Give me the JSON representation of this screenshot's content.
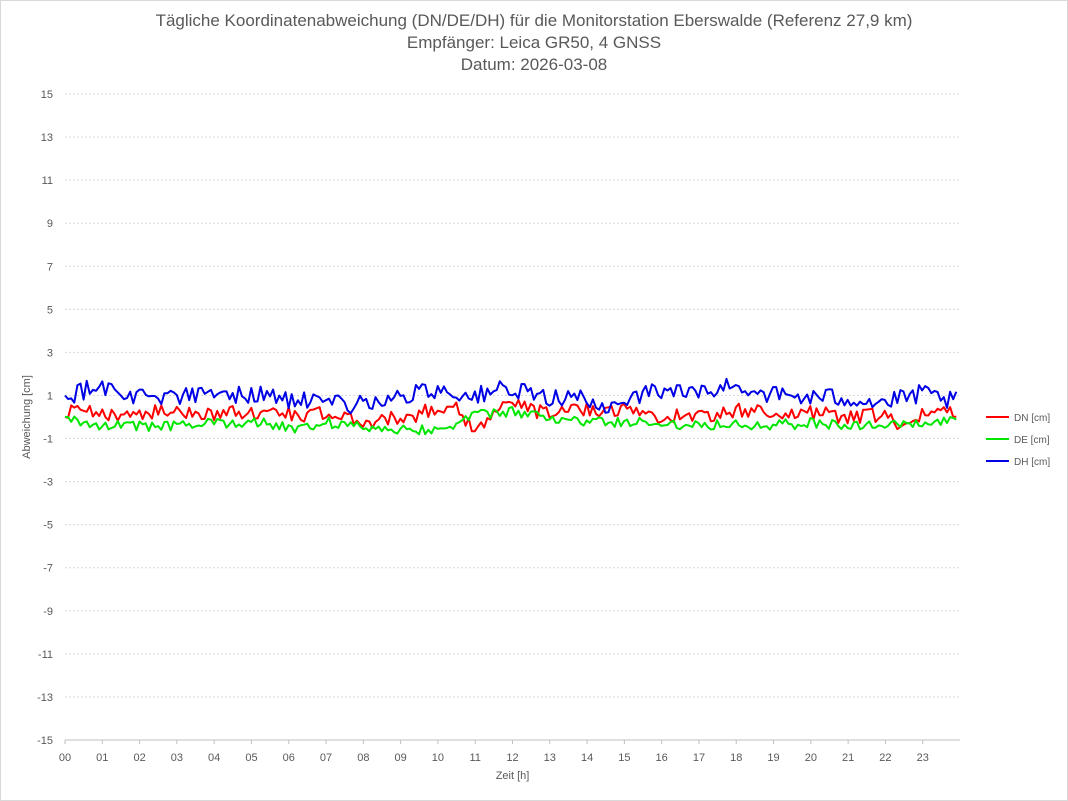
{
  "chart_data": {
    "type": "line",
    "title": "Tägliche Koordinatenabweichung (DN/DE/DH) für die Monitorstation Eberswalde (Referenz 27,9 km)",
    "subtitle1": "Empfänger: Leica GR50, 4 GNSS",
    "subtitle2": "Datum: 2026-03-08",
    "xlabel": "Zeit [h]",
    "ylabel": "Abweichung [cm]",
    "xlim": [
      0,
      24
    ],
    "ylim": [
      -15,
      15
    ],
    "y_ticks": [
      "15",
      "13",
      "11",
      "9",
      "7",
      "5",
      "3",
      "1",
      "-1",
      "-3",
      "-5",
      "-7",
      "-9",
      "-11",
      "-13",
      "-15"
    ],
    "y_tick_values": [
      15,
      13,
      11,
      9,
      7,
      5,
      3,
      1,
      -1,
      -3,
      -5,
      -7,
      -9,
      -11,
      -13,
      -15
    ],
    "x_ticks": [
      "00",
      "01",
      "02",
      "03",
      "04",
      "05",
      "06",
      "07",
      "08",
      "09",
      "10",
      "11",
      "12",
      "13",
      "14",
      "15",
      "16",
      "17",
      "18",
      "19",
      "20",
      "21",
      "22",
      "23"
    ],
    "grid": "horizontal dotted",
    "legend_position": "right",
    "sample_count": 288,
    "series": [
      {
        "name": "DN [cm]",
        "color": "#ff0000",
        "mean": 0.1,
        "amplitude": 0.35,
        "anchors": [
          [
            0.0,
            0.0
          ],
          [
            0.2,
            0.4
          ],
          [
            1.0,
            0.1
          ],
          [
            2.0,
            0.3
          ],
          [
            3.0,
            0.3
          ],
          [
            4.0,
            0.2
          ],
          [
            5.0,
            0.3
          ],
          [
            6.0,
            0.2
          ],
          [
            7.0,
            0.1
          ],
          [
            8.0,
            -0.4
          ],
          [
            9.0,
            -0.2
          ],
          [
            10.0,
            0.6
          ],
          [
            10.5,
            0.8
          ],
          [
            11.0,
            -1.2
          ],
          [
            11.5,
            0.3
          ],
          [
            12.0,
            1.0
          ],
          [
            13.0,
            0.1
          ],
          [
            14.0,
            0.6
          ],
          [
            15.0,
            0.5
          ],
          [
            16.0,
            0.0
          ],
          [
            17.0,
            0.0
          ],
          [
            18.0,
            0.4
          ],
          [
            19.0,
            0.3
          ],
          [
            20.0,
            0.2
          ],
          [
            21.0,
            0.0
          ],
          [
            22.0,
            0.0
          ],
          [
            22.5,
            -1.2
          ],
          [
            23.0,
            0.2
          ],
          [
            23.8,
            0.5
          ]
        ]
      },
      {
        "name": "DE [cm]",
        "color": "#00e600",
        "mean": -0.3,
        "amplitude": 0.25,
        "anchors": [
          [
            0.0,
            0.0
          ],
          [
            1.0,
            -0.4
          ],
          [
            2.0,
            -0.5
          ],
          [
            3.0,
            -0.5
          ],
          [
            4.0,
            -0.3
          ],
          [
            5.0,
            -0.1
          ],
          [
            6.0,
            -0.7
          ],
          [
            7.0,
            -0.2
          ],
          [
            8.0,
            -0.6
          ],
          [
            9.0,
            -0.7
          ],
          [
            10.0,
            -0.8
          ],
          [
            11.0,
            0.3
          ],
          [
            12.0,
            0.6
          ],
          [
            13.0,
            0.1
          ],
          [
            14.0,
            -0.2
          ],
          [
            15.0,
            -0.2
          ],
          [
            16.0,
            -0.3
          ],
          [
            17.0,
            -0.4
          ],
          [
            18.0,
            -0.3
          ],
          [
            19.0,
            -0.4
          ],
          [
            20.0,
            -0.3
          ],
          [
            21.0,
            -0.4
          ],
          [
            22.0,
            -0.5
          ],
          [
            23.0,
            -0.3
          ],
          [
            23.8,
            -0.2
          ]
        ]
      },
      {
        "name": "DH [cm]",
        "color": "#0000e6",
        "mean": 0.9,
        "amplitude": 0.45,
        "anchors": [
          [
            0.0,
            1.0
          ],
          [
            1.0,
            2.0
          ],
          [
            1.5,
            1.0
          ],
          [
            2.0,
            1.1
          ],
          [
            3.0,
            1.0
          ],
          [
            4.0,
            1.1
          ],
          [
            5.0,
            1.2
          ],
          [
            6.0,
            0.8
          ],
          [
            7.0,
            0.3
          ],
          [
            8.0,
            0.5
          ],
          [
            9.0,
            0.9
          ],
          [
            10.0,
            1.6
          ],
          [
            11.0,
            0.9
          ],
          [
            11.5,
            1.6
          ],
          [
            12.0,
            1.3
          ],
          [
            13.0,
            1.0
          ],
          [
            14.0,
            0.8
          ],
          [
            14.5,
            -0.5
          ],
          [
            15.0,
            1.0
          ],
          [
            16.0,
            1.5
          ],
          [
            17.0,
            1.2
          ],
          [
            18.0,
            1.9
          ],
          [
            19.0,
            1.1
          ],
          [
            20.0,
            0.9
          ],
          [
            21.0,
            0.9
          ],
          [
            22.0,
            0.5
          ],
          [
            23.0,
            1.2
          ],
          [
            23.8,
            0.6
          ]
        ]
      }
    ]
  }
}
